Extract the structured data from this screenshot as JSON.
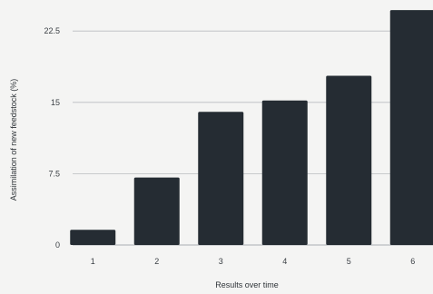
{
  "chart_data": {
    "type": "bar",
    "title": "",
    "xlabel": "Results over time",
    "ylabel": "Assimilation of new feedstock (%)",
    "categories": [
      "1",
      "2",
      "3",
      "4",
      "5",
      "6"
    ],
    "values": [
      1.6,
      7.1,
      14.0,
      15.2,
      17.8,
      24.7
    ],
    "ylim": [
      0,
      25
    ],
    "yticks": [
      {
        "value": 0,
        "label": "0"
      },
      {
        "value": 7.5,
        "label": "7.5"
      },
      {
        "value": 15,
        "label": "15"
      },
      {
        "value": 22.5,
        "label": "22.5"
      }
    ],
    "grid": true,
    "legend": "none",
    "bar_color": "#252c33",
    "grid_color": "#b9bcc0",
    "background_color": "#f4f4f3"
  }
}
